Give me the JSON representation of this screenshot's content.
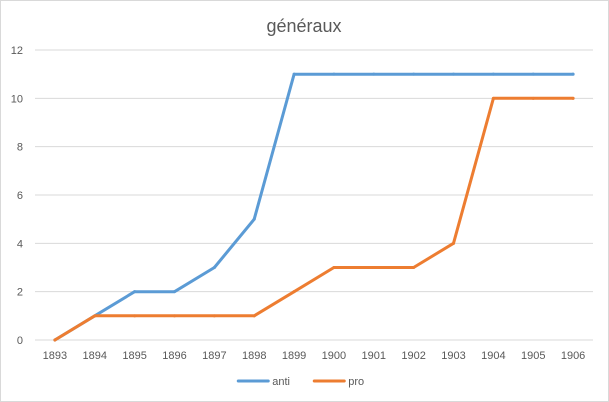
{
  "chart_data": {
    "type": "line",
    "title": "généraux",
    "categories": [
      "1893",
      "1894",
      "1895",
      "1896",
      "1897",
      "1898",
      "1899",
      "1900",
      "1901",
      "1902",
      "1903",
      "1904",
      "1905",
      "1906"
    ],
    "series": [
      {
        "name": "anti",
        "color": "#5b9bd5",
        "values": [
          0,
          1,
          2,
          2,
          3,
          5,
          11,
          11,
          11,
          11,
          11,
          11,
          11,
          11
        ]
      },
      {
        "name": "pro",
        "color": "#ed7d31",
        "values": [
          0,
          1,
          1,
          1,
          1,
          1,
          2,
          3,
          3,
          3,
          4,
          10,
          10,
          10
        ]
      }
    ],
    "ylim": [
      0,
      12
    ],
    "yticks": [
      0,
      2,
      4,
      6,
      8,
      10,
      12
    ],
    "ytick_labels": [
      "0",
      "2",
      "4",
      "6",
      "8",
      "10",
      "12"
    ],
    "grid": true,
    "legend_position": "bottom"
  }
}
